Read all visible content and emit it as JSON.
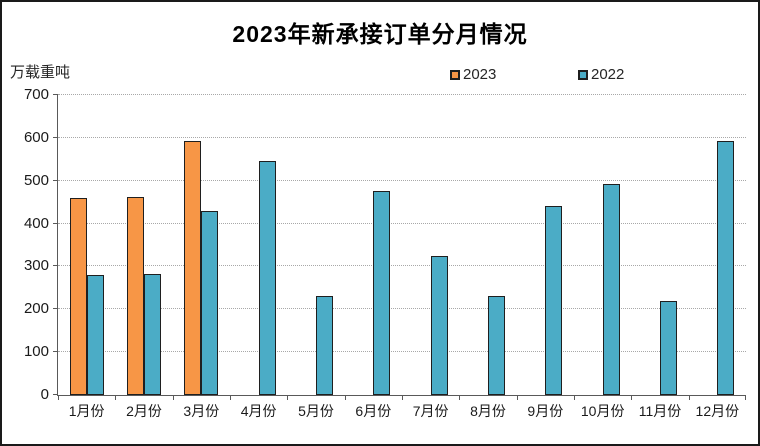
{
  "title": "2023年新承接订单分月情况",
  "y_axis_unit": "万载重吨",
  "legend": [
    {
      "label": "2023",
      "color": "#F79646"
    },
    {
      "label": "2022",
      "color": "#4BACC6"
    }
  ],
  "chart_data": {
    "type": "bar",
    "title": "2023年新承接订单分月情况",
    "ylabel": "万载重吨",
    "categories": [
      "1月份",
      "2月份",
      "3月份",
      "4月份",
      "5月份",
      "6月份",
      "7月份",
      "8月份",
      "9月份",
      "10月份",
      "11月份",
      "12月份"
    ],
    "series": [
      {
        "name": "2023",
        "color": "#F79646",
        "values": [
          460,
          463,
          593,
          null,
          null,
          null,
          null,
          null,
          null,
          null,
          null,
          null
        ]
      },
      {
        "name": "2022",
        "color": "#4BACC6",
        "values": [
          280,
          282,
          429,
          547,
          230,
          476,
          325,
          232,
          440,
          493,
          220,
          592
        ]
      }
    ],
    "ylim": [
      0,
      700
    ],
    "ytick_interval": 100,
    "yticks": [
      0,
      100,
      200,
      300,
      400,
      500,
      600,
      700
    ],
    "grid": true,
    "gridline_style": "dotted",
    "legend_position": "top",
    "bar_border_color": "#1F1F1F"
  },
  "colors": {
    "background": "#FFFFFF",
    "frame_border": "#1A1A1A",
    "axis": "#595959",
    "gridline": "#A8A8A8",
    "text": "#1A1A1A"
  }
}
